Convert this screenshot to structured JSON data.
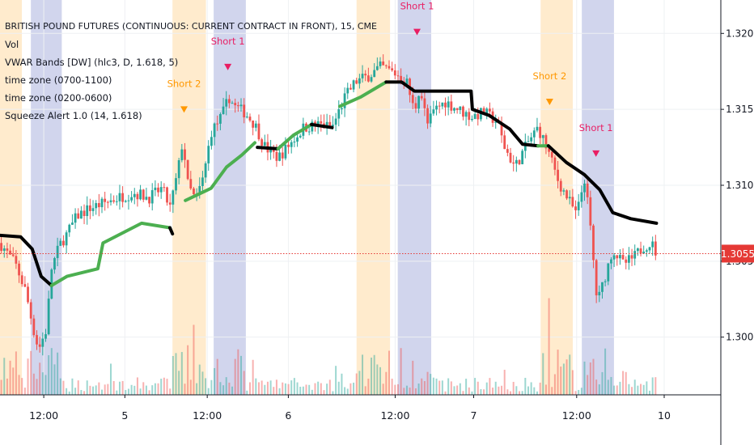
{
  "chart": {
    "title": "BRITISH POUND FUTURES (CONTINUOUS: CURRENT CONTRACT IN FRONT), 15, CME",
    "indicators": [
      "Vol",
      "VWAR Bands [DW] (hlc3, D, 1.618, 5)",
      "time zone (0700-1100)",
      "time zone (0200-0600)",
      "Squeeze Alert 1.0 (14, 1.618)"
    ],
    "last_price_label": "1.3055"
  },
  "colors": {
    "up": "#26a69a",
    "down": "#ef5350",
    "vwap_up": "#4caf50",
    "vwap_down": "#000000",
    "zone_orange": "#ffe0b2",
    "zone_blue": "#c5cae9",
    "last_price": "#e53935",
    "short_1": "#e91e63",
    "short_2": "#ff9800"
  },
  "chart_data": {
    "type": "line",
    "title": "BRITISH POUND FUTURES (CONTINUOUS: CURRENT CONTRACT IN FRONT), 15, CME",
    "x_axis": {
      "range": [
        0,
        28
      ],
      "ticks": [
        {
          "x": 1.7,
          "label": "12:00"
        },
        {
          "x": 4.85,
          "label": "5"
        },
        {
          "x": 8.05,
          "label": "12:00"
        },
        {
          "x": 11.2,
          "label": "6"
        },
        {
          "x": 15.35,
          "label": "12:00"
        },
        {
          "x": 18.4,
          "label": "7"
        },
        {
          "x": 22.4,
          "label": "12:00"
        },
        {
          "x": 25.8,
          "label": "10"
        }
      ]
    },
    "y_axis": {
      "range": [
        1.2962,
        1.3222
      ],
      "ticks": [
        1.3,
        1.305,
        1.31,
        1.315,
        1.32
      ],
      "tick_labels": [
        "1.3000",
        "1.3050",
        "1.3100",
        "1.3150",
        "1.3200"
      ],
      "last_price": 1.3055
    },
    "grid": true,
    "time_zones": [
      {
        "name": "time zone (0700-1100)",
        "color": "orange",
        "ranges": [
          [
            0,
            0.85
          ],
          [
            6.7,
            8.0
          ],
          [
            13.85,
            15.15
          ],
          [
            21.0,
            22.25
          ]
        ]
      },
      {
        "name": "time zone (0200-0600)",
        "color": "blue",
        "ranges": [
          [
            1.2,
            2.4
          ],
          [
            8.3,
            9.55
          ],
          [
            15.45,
            16.75
          ],
          [
            22.6,
            23.85
          ]
        ]
      }
    ],
    "price_path": [
      [
        0,
        1.3062
      ],
      [
        0.6,
        1.3048
      ],
      [
        1.0,
        1.303
      ],
      [
        1.3,
        1.3005
      ],
      [
        1.5,
        1.2992
      ],
      [
        1.8,
        1.3005
      ],
      [
        2.0,
        1.3045
      ],
      [
        2.3,
        1.306
      ],
      [
        2.6,
        1.3068
      ],
      [
        3.0,
        1.308
      ],
      [
        3.5,
        1.3085
      ],
      [
        4.0,
        1.3088
      ],
      [
        4.6,
        1.3092
      ],
      [
        5.2,
        1.3095
      ],
      [
        5.8,
        1.3092
      ],
      [
        6.3,
        1.3098
      ],
      [
        6.6,
        1.3085
      ],
      [
        6.9,
        1.3108
      ],
      [
        7.1,
        1.313
      ],
      [
        7.3,
        1.31
      ],
      [
        7.6,
        1.309
      ],
      [
        7.9,
        1.3105
      ],
      [
        8.2,
        1.3135
      ],
      [
        8.6,
        1.3145
      ],
      [
        8.9,
        1.3158
      ],
      [
        9.1,
        1.3152
      ],
      [
        9.5,
        1.3148
      ],
      [
        9.9,
        1.314
      ],
      [
        10.3,
        1.3125
      ],
      [
        10.8,
        1.3118
      ],
      [
        11.3,
        1.3128
      ],
      [
        11.8,
        1.3138
      ],
      [
        12.4,
        1.314
      ],
      [
        12.9,
        1.3138
      ],
      [
        13.4,
        1.3158
      ],
      [
        13.8,
        1.3168
      ],
      [
        14.3,
        1.3172
      ],
      [
        14.8,
        1.3178
      ],
      [
        15.2,
        1.3175
      ],
      [
        15.5,
        1.3172
      ],
      [
        15.8,
        1.3168
      ],
      [
        16.1,
        1.3148
      ],
      [
        16.3,
        1.3165
      ],
      [
        16.6,
        1.314
      ],
      [
        16.9,
        1.315
      ],
      [
        17.3,
        1.3155
      ],
      [
        17.8,
        1.315
      ],
      [
        18.3,
        1.3145
      ],
      [
        18.8,
        1.3148
      ],
      [
        19.3,
        1.3142
      ],
      [
        19.6,
        1.3125
      ],
      [
        20.0,
        1.3112
      ],
      [
        20.5,
        1.3128
      ],
      [
        20.9,
        1.3138
      ],
      [
        21.3,
        1.3122
      ],
      [
        21.7,
        1.3102
      ],
      [
        22.1,
        1.309
      ],
      [
        22.4,
        1.308
      ],
      [
        22.7,
        1.3105
      ],
      [
        22.9,
        1.3078
      ],
      [
        23.2,
        1.3022
      ],
      [
        23.5,
        1.304
      ],
      [
        23.8,
        1.3058
      ],
      [
        24.2,
        1.3048
      ],
      [
        24.6,
        1.3052
      ],
      [
        25.0,
        1.306
      ],
      [
        25.3,
        1.3062
      ],
      [
        25.5,
        1.3055
      ]
    ],
    "vwap_segments": [
      {
        "trend": "down",
        "points": [
          [
            0,
            1.3067
          ],
          [
            0.8,
            1.3066
          ],
          [
            1.25,
            1.3058
          ],
          [
            1.6,
            1.304
          ],
          [
            2.0,
            1.3034
          ]
        ]
      },
      {
        "trend": "up",
        "points": [
          [
            2.0,
            1.3034
          ],
          [
            2.6,
            1.304
          ],
          [
            3.8,
            1.3045
          ],
          [
            4.0,
            1.3062
          ],
          [
            5.5,
            1.3075
          ],
          [
            6.6,
            1.3072
          ]
        ]
      },
      {
        "trend": "down",
        "points": [
          [
            6.6,
            1.3072
          ],
          [
            6.7,
            1.3068
          ]
        ]
      },
      {
        "trend": "up",
        "points": [
          [
            7.2,
            1.309
          ],
          [
            8.2,
            1.3098
          ],
          [
            8.8,
            1.3112
          ],
          [
            9.4,
            1.312
          ],
          [
            9.9,
            1.3128
          ]
        ]
      },
      {
        "trend": "down",
        "points": [
          [
            10.0,
            1.3125
          ],
          [
            10.8,
            1.3124
          ]
        ]
      },
      {
        "trend": "up",
        "points": [
          [
            10.8,
            1.3124
          ],
          [
            11.4,
            1.3133
          ],
          [
            12.1,
            1.314
          ]
        ]
      },
      {
        "trend": "down",
        "points": [
          [
            12.1,
            1.314
          ],
          [
            12.9,
            1.3138
          ]
        ]
      },
      {
        "trend": "up",
        "points": [
          [
            13.2,
            1.3152
          ],
          [
            14.0,
            1.3158
          ],
          [
            15.0,
            1.3168
          ]
        ]
      },
      {
        "trend": "down",
        "points": [
          [
            15.0,
            1.3168
          ],
          [
            15.6,
            1.3168
          ],
          [
            16.1,
            1.3162
          ],
          [
            17.0,
            1.3162
          ],
          [
            18.3,
            1.3162
          ],
          [
            18.35,
            1.315
          ],
          [
            19.0,
            1.3146
          ],
          [
            19.8,
            1.3137
          ],
          [
            20.3,
            1.3127
          ],
          [
            20.9,
            1.3126
          ]
        ]
      },
      {
        "trend": "up",
        "points": [
          [
            20.9,
            1.3126
          ],
          [
            21.3,
            1.3126
          ]
        ]
      },
      {
        "trend": "down",
        "points": [
          [
            21.3,
            1.3126
          ],
          [
            22.0,
            1.3115
          ],
          [
            22.7,
            1.3107
          ],
          [
            23.3,
            1.3097
          ],
          [
            23.8,
            1.3082
          ],
          [
            24.5,
            1.3078
          ],
          [
            25.5,
            1.3075
          ]
        ]
      }
    ],
    "signals": [
      {
        "label": "Short 2",
        "type": "short_2",
        "x": 7.15,
        "y": 1.3152
      },
      {
        "label": "Short 1",
        "type": "short_1",
        "x": 8.85,
        "y": 1.318
      },
      {
        "label": "Short 1",
        "type": "short_1",
        "x": 16.2,
        "y": 1.3203
      },
      {
        "label": "Short 2",
        "type": "short_2",
        "x": 21.35,
        "y": 1.3157
      },
      {
        "label": "Short 1",
        "type": "short_1",
        "x": 23.15,
        "y": 1.3123
      }
    ]
  }
}
